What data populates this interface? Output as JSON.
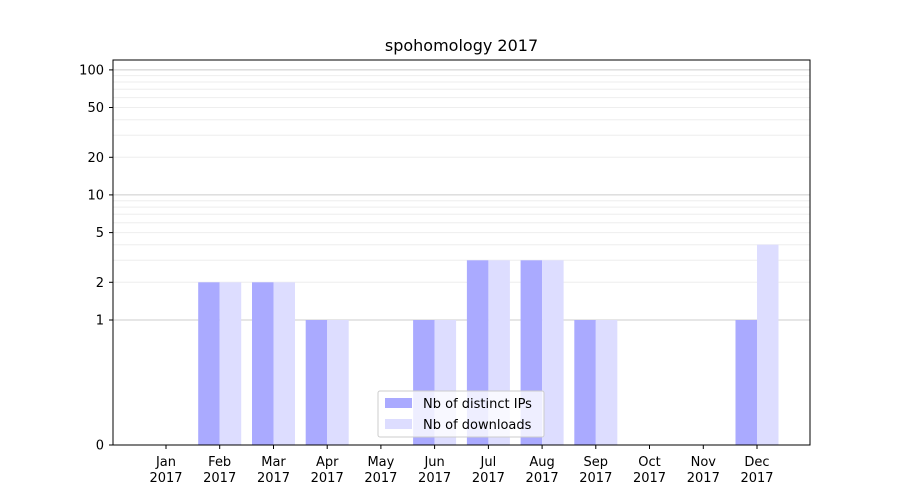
{
  "chart_data": {
    "type": "bar",
    "title": "spohomology 2017",
    "xlabel": "",
    "ylabel": "",
    "yscale": "symlog",
    "ylim": [
      0,
      120
    ],
    "yticks": [
      0,
      1,
      2,
      5,
      10,
      20,
      50,
      100
    ],
    "grid": true,
    "legend_position": "lower-center",
    "categories": [
      [
        "Jan",
        "2017"
      ],
      [
        "Feb",
        "2017"
      ],
      [
        "Mar",
        "2017"
      ],
      [
        "Apr",
        "2017"
      ],
      [
        "May",
        "2017"
      ],
      [
        "Jun",
        "2017"
      ],
      [
        "Jul",
        "2017"
      ],
      [
        "Aug",
        "2017"
      ],
      [
        "Sep",
        "2017"
      ],
      [
        "Oct",
        "2017"
      ],
      [
        "Nov",
        "2017"
      ],
      [
        "Dec",
        "2017"
      ]
    ],
    "series": [
      {
        "name": "Nb of distinct IPs",
        "color": "#aaaaff",
        "values": [
          0,
          2,
          2,
          1,
          0,
          1,
          3,
          3,
          1,
          0,
          0,
          1
        ]
      },
      {
        "name": "Nb of downloads",
        "color": "#ddddff",
        "values": [
          0,
          2,
          2,
          1,
          0,
          1,
          3,
          3,
          1,
          0,
          0,
          4
        ]
      }
    ]
  }
}
